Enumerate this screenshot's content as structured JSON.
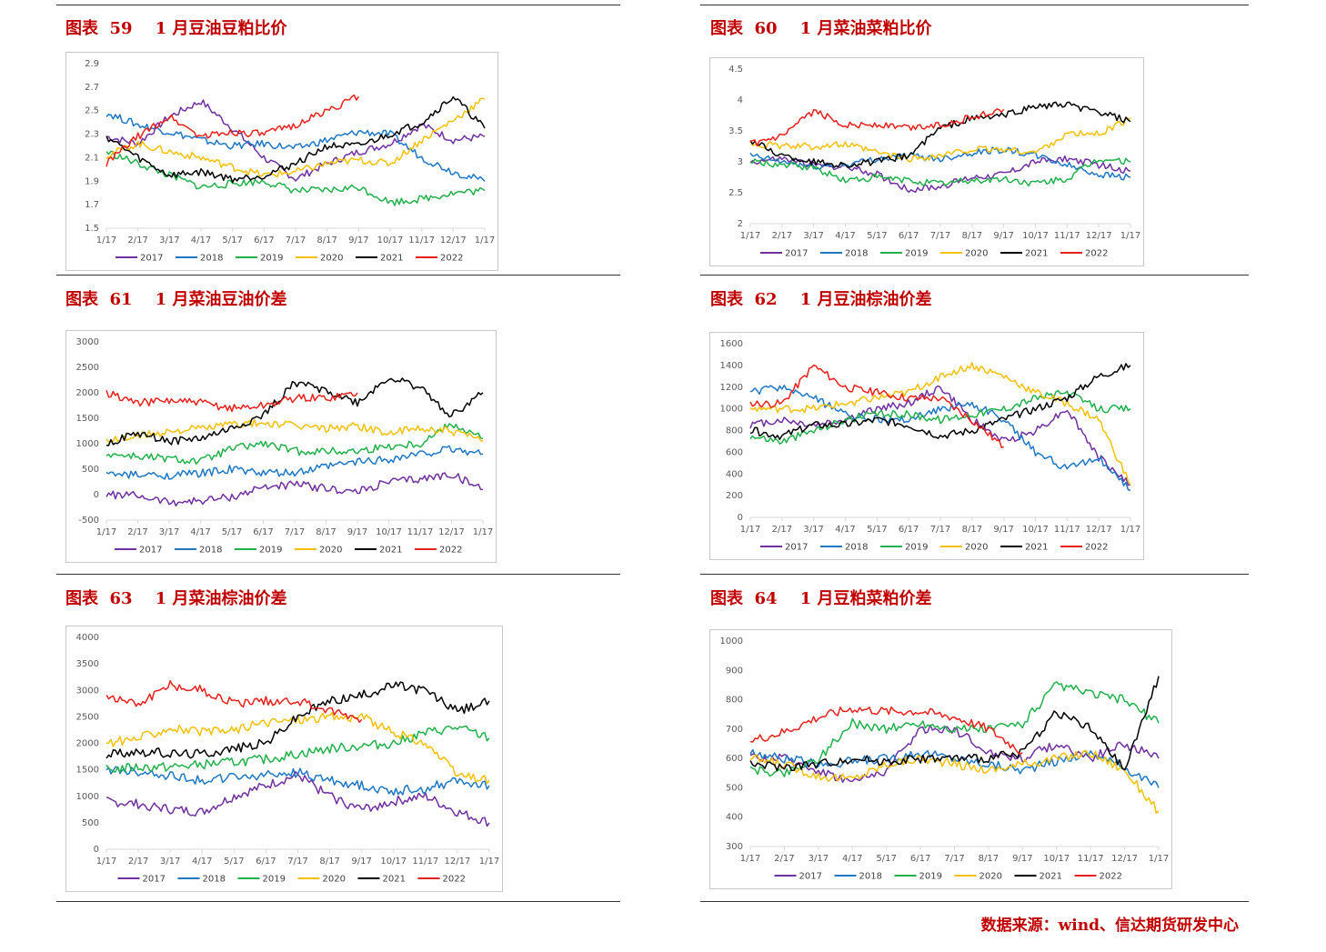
{
  "series_names": [
    "2017",
    "2018",
    "2019",
    "2020",
    "2021",
    "2022"
  ],
  "series_colors": [
    "#7030a0",
    "#1f77c4",
    "#21b04b",
    "#f5c000",
    "#000000",
    "#e8201c"
  ],
  "months": [
    "1/17",
    "2/17",
    "3/17",
    "4/17",
    "5/17",
    "6/17",
    "7/17",
    "8/17",
    "9/17",
    "10/17",
    "11/17",
    "12/17",
    "1/17"
  ],
  "source": "数据来源：wind、信达期货研发中心",
  "chart_data": [
    {
      "id": "c59",
      "type": "line",
      "title": "图表  59    1 月豆油豆粕比价",
      "yticks": [
        "2.9",
        "2.7",
        "2.5",
        "2.3",
        "2.1",
        "1.9",
        "1.7",
        "1.5"
      ],
      "ylim": [
        1.5,
        2.9
      ],
      "series": [
        {
          "name": "2017",
          "values": [
            2.28,
            2.22,
            2.45,
            2.58,
            2.35,
            2.1,
            1.92,
            2.05,
            2.15,
            2.22,
            2.38,
            2.25,
            2.28
          ]
        },
        {
          "name": "2018",
          "values": [
            2.48,
            2.38,
            2.32,
            2.25,
            2.2,
            2.22,
            2.18,
            2.25,
            2.32,
            2.3,
            2.1,
            1.98,
            1.9
          ]
        },
        {
          "name": "2019",
          "values": [
            2.15,
            2.05,
            1.95,
            1.85,
            1.88,
            1.9,
            1.82,
            1.82,
            1.85,
            1.72,
            1.75,
            1.8,
            1.82
          ]
        },
        {
          "name": "2020",
          "values": [
            2.12,
            2.22,
            2.15,
            2.1,
            2.02,
            1.95,
            1.98,
            2.05,
            2.08,
            2.05,
            2.25,
            2.42,
            2.6
          ]
        },
        {
          "name": "2021",
          "values": [
            2.28,
            2.1,
            1.95,
            1.98,
            1.92,
            1.95,
            2.05,
            2.2,
            2.2,
            2.3,
            2.4,
            2.62,
            2.35
          ]
        },
        {
          "name": "2022",
          "values": [
            2.05,
            2.28,
            2.45,
            2.28,
            2.32,
            2.3,
            2.38,
            2.5,
            2.62,
            null,
            null,
            null,
            null
          ]
        }
      ]
    },
    {
      "id": "c60",
      "type": "line",
      "title": "图表  60    1 月菜油菜粕比价",
      "yticks": [
        "4.5",
        "4",
        "3.5",
        "3",
        "2.5",
        "2"
      ],
      "ylim": [
        2,
        4.5
      ],
      "series": [
        {
          "name": "2017",
          "values": [
            3.0,
            3.05,
            2.95,
            2.92,
            2.8,
            2.55,
            2.6,
            2.75,
            2.8,
            3.0,
            3.05,
            2.95,
            2.85
          ]
        },
        {
          "name": "2018",
          "values": [
            3.1,
            3.0,
            2.92,
            2.95,
            3.05,
            3.1,
            3.05,
            3.15,
            3.2,
            3.1,
            2.95,
            2.8,
            2.75
          ]
        },
        {
          "name": "2019",
          "values": [
            3.0,
            2.95,
            2.9,
            2.7,
            2.75,
            2.7,
            2.65,
            2.7,
            2.72,
            2.65,
            2.72,
            3.05,
            3.0
          ]
        },
        {
          "name": "2020",
          "values": [
            3.3,
            3.25,
            3.25,
            3.28,
            3.15,
            3.05,
            3.1,
            3.2,
            3.2,
            3.15,
            3.45,
            3.45,
            3.7
          ]
        },
        {
          "name": "2021",
          "values": [
            3.35,
            3.1,
            3.0,
            2.95,
            3.0,
            3.1,
            3.55,
            3.7,
            3.75,
            3.9,
            3.92,
            3.8,
            3.65
          ]
        },
        {
          "name": "2022",
          "values": [
            3.28,
            3.4,
            3.82,
            3.6,
            3.6,
            3.55,
            3.6,
            3.72,
            3.85,
            null,
            null,
            null,
            null
          ]
        }
      ]
    },
    {
      "id": "c61",
      "type": "line",
      "title": "图表  61    1 月菜油豆油价差",
      "yticks": [
        "3000",
        "2500",
        "2000",
        "1500",
        "1000",
        "500",
        "0",
        "-500"
      ],
      "ylim": [
        -500,
        3000
      ],
      "series": [
        {
          "name": "2017",
          "values": [
            0,
            -20,
            -150,
            -120,
            -50,
            150,
            200,
            120,
            50,
            250,
            300,
            400,
            100
          ]
        },
        {
          "name": "2018",
          "values": [
            400,
            380,
            380,
            420,
            500,
            420,
            420,
            550,
            650,
            700,
            800,
            900,
            800
          ]
        },
        {
          "name": "2019",
          "values": [
            800,
            750,
            700,
            650,
            900,
            1000,
            850,
            850,
            850,
            950,
            1000,
            1400,
            1100
          ]
        },
        {
          "name": "2020",
          "values": [
            1050,
            1150,
            1250,
            1300,
            1380,
            1400,
            1350,
            1300,
            1350,
            1200,
            1300,
            1250,
            1050
          ]
        },
        {
          "name": "2021",
          "values": [
            1000,
            1200,
            1050,
            1100,
            1300,
            1550,
            2200,
            2050,
            1800,
            2300,
            2100,
            1550,
            2000
          ]
        },
        {
          "name": "2022",
          "values": [
            2000,
            1800,
            1850,
            1800,
            1700,
            1750,
            1900,
            1900,
            2000,
            null,
            null,
            null,
            null
          ]
        }
      ]
    },
    {
      "id": "c62",
      "type": "line",
      "title": "图表  62    1 月豆油棕油价差",
      "yticks": [
        "1600",
        "1400",
        "1200",
        "1000",
        "800",
        "600",
        "400",
        "200",
        "0"
      ],
      "ylim": [
        0,
        1600
      ],
      "series": [
        {
          "name": "2017",
          "values": [
            850,
            900,
            850,
            900,
            1000,
            1050,
            1200,
            900,
            700,
            800,
            1000,
            550,
            300
          ]
        },
        {
          "name": "2018",
          "values": [
            1150,
            1200,
            1100,
            950,
            900,
            900,
            1000,
            1050,
            900,
            600,
            450,
            550,
            250
          ]
        },
        {
          "name": "2019",
          "values": [
            750,
            700,
            800,
            900,
            950,
            950,
            900,
            950,
            1000,
            1100,
            1150,
            1000,
            1000
          ]
        },
        {
          "name": "2020",
          "values": [
            1000,
            1000,
            1000,
            1050,
            1100,
            1150,
            1300,
            1400,
            1300,
            1150,
            1050,
            900,
            300
          ]
        },
        {
          "name": "2021",
          "values": [
            800,
            750,
            850,
            850,
            900,
            850,
            750,
            800,
            900,
            1000,
            1100,
            1300,
            1400
          ]
        },
        {
          "name": "2022",
          "values": [
            1050,
            1050,
            1400,
            1200,
            1150,
            1100,
            1100,
            900,
            650,
            null,
            null,
            null,
            null
          ]
        }
      ]
    },
    {
      "id": "c63",
      "type": "line",
      "title": "图表  63    1 月菜油棕油价差",
      "yticks": [
        "4000",
        "3500",
        "3000",
        "2500",
        "2000",
        "1500",
        "1000",
        "500",
        "0"
      ],
      "ylim": [
        0,
        4000
      ],
      "series": [
        {
          "name": "2017",
          "values": [
            900,
            850,
            750,
            700,
            1000,
            1200,
            1400,
            1000,
            750,
            900,
            1000,
            700,
            500
          ]
        },
        {
          "name": "2018",
          "values": [
            1500,
            1450,
            1400,
            1300,
            1350,
            1400,
            1450,
            1300,
            1200,
            1100,
            1150,
            1300,
            1200
          ]
        },
        {
          "name": "2019",
          "values": [
            1500,
            1550,
            1550,
            1600,
            1650,
            1700,
            1800,
            1900,
            1950,
            2000,
            2200,
            2300,
            2100
          ]
        },
        {
          "name": "2020",
          "values": [
            2000,
            2100,
            2300,
            2200,
            2250,
            2400,
            2450,
            2500,
            2500,
            2200,
            2000,
            1400,
            1300
          ]
        },
        {
          "name": "2021",
          "values": [
            1800,
            1850,
            1800,
            1800,
            1900,
            2000,
            2500,
            2800,
            2900,
            3100,
            3000,
            2600,
            2800
          ]
        },
        {
          "name": "2022",
          "values": [
            2900,
            2750,
            3100,
            3000,
            2750,
            2800,
            2800,
            2600,
            2450,
            null,
            null,
            null,
            null
          ]
        }
      ]
    },
    {
      "id": "c64",
      "type": "line",
      "title": "图表  64    1 月豆粕菜粕价差",
      "yticks": [
        "1000",
        "900",
        "800",
        "700",
        "600",
        "500",
        "400",
        "300"
      ],
      "ylim": [
        300,
        1000
      ],
      "series": [
        {
          "name": "2017",
          "values": [
            600,
            600,
            560,
            520,
            560,
            700,
            700,
            620,
            600,
            650,
            600,
            650,
            600
          ]
        },
        {
          "name": "2018",
          "values": [
            620,
            600,
            580,
            590,
            600,
            620,
            600,
            580,
            560,
            590,
            620,
            570,
            500
          ]
        },
        {
          "name": "2019",
          "values": [
            560,
            550,
            600,
            720,
            700,
            720,
            700,
            700,
            720,
            850,
            820,
            800,
            720
          ]
        },
        {
          "name": "2020",
          "values": [
            600,
            580,
            540,
            530,
            580,
            600,
            580,
            560,
            580,
            600,
            620,
            560,
            420
          ]
        },
        {
          "name": "2021",
          "values": [
            580,
            570,
            580,
            600,
            590,
            600,
            600,
            600,
            620,
            760,
            700,
            560,
            880
          ]
        },
        {
          "name": "2022",
          "values": [
            660,
            690,
            740,
            770,
            760,
            760,
            740,
            700,
            620,
            null,
            null,
            null,
            null
          ]
        }
      ]
    }
  ]
}
